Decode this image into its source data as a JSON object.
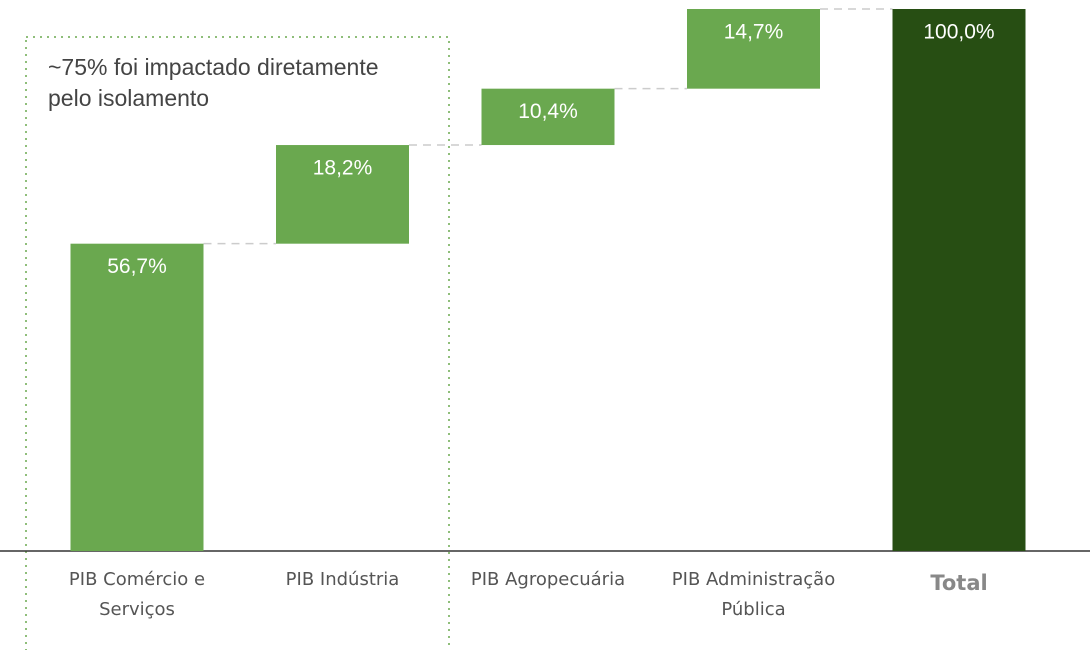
{
  "chart_data": {
    "type": "waterfall",
    "annotation": "~75% foi impactado diretamente pelo isolamento",
    "categories": [
      "PIB Comércio e Serviços",
      "PIB Indústria",
      "PIB Agropecuária",
      "PIB Administração Pública",
      "Total"
    ],
    "values": [
      56.7,
      18.2,
      10.4,
      14.7,
      100
    ],
    "value_labels": [
      "56,7%",
      "18,2%",
      "10,4%",
      "14,7%",
      "100,0%"
    ],
    "colors": [
      "#6aa84f",
      "#6aa84f",
      "#6aa84f",
      "#6aa84f",
      "#274e13"
    ],
    "ylim": [
      0,
      100
    ]
  }
}
